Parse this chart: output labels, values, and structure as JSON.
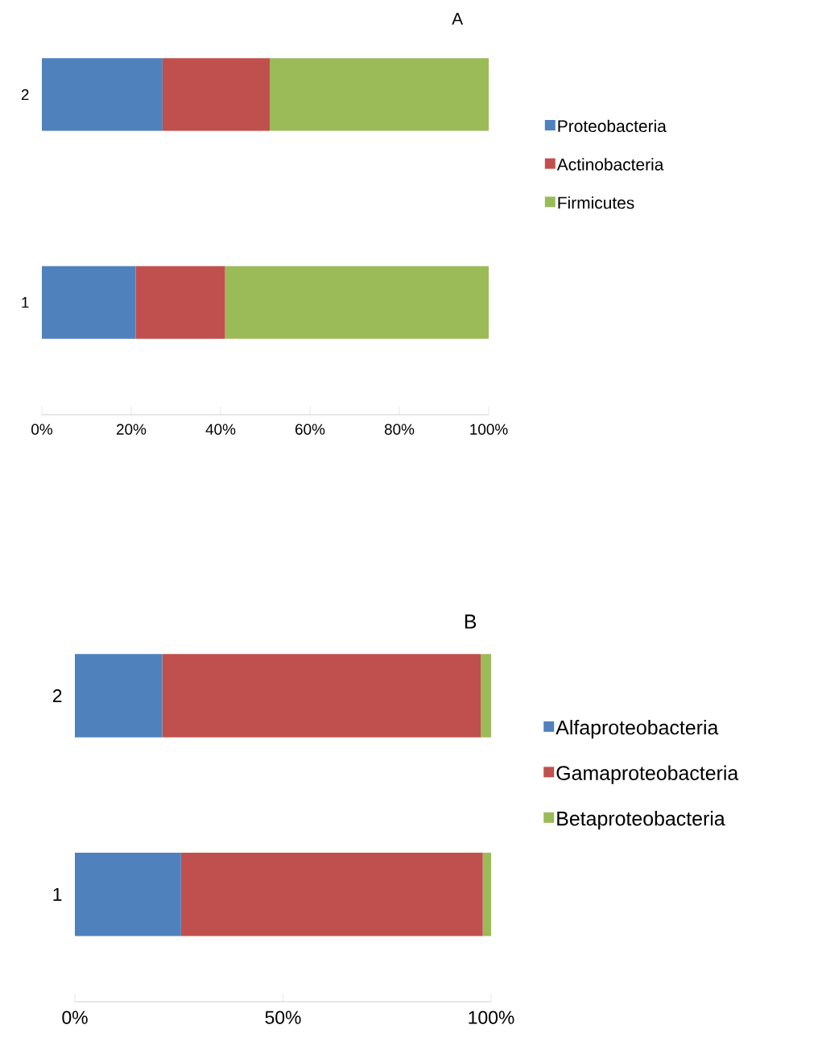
{
  "chart_data": [
    {
      "type": "bar",
      "title": "A",
      "orientation": "horizontal",
      "stacked": true,
      "categories": [
        "2",
        "1"
      ],
      "xlim": [
        0,
        100
      ],
      "xticks": [
        {
          "value": 0,
          "label": "0%"
        },
        {
          "value": 20,
          "label": "20%"
        },
        {
          "value": 40,
          "label": "40%"
        },
        {
          "value": 60,
          "label": "60%"
        },
        {
          "value": 80,
          "label": "80%"
        },
        {
          "value": 100,
          "label": "100%"
        }
      ],
      "legend": "right",
      "series": [
        {
          "name": "Proteobacteria",
          "color": "#4f81bd",
          "values": [
            27,
            21
          ]
        },
        {
          "name": "Actinobacteria",
          "color": "#c0504d",
          "values": [
            24,
            20
          ]
        },
        {
          "name": "Firmicutes",
          "color": "#9bbb59",
          "values": [
            49,
            59
          ]
        }
      ]
    },
    {
      "type": "bar",
      "title": "B",
      "orientation": "horizontal",
      "stacked": true,
      "categories": [
        "2",
        "1"
      ],
      "xlim": [
        0,
        100
      ],
      "xticks": [
        {
          "value": 0,
          "label": "0%"
        },
        {
          "value": 50,
          "label": "50%"
        },
        {
          "value": 100,
          "label": "100%"
        }
      ],
      "legend": "right",
      "series": [
        {
          "name": "Alfaproteobacteria",
          "color": "#4f81bd",
          "values": [
            21,
            25.5
          ]
        },
        {
          "name": "Gamaproteobacteria",
          "color": "#c0504d",
          "values": [
            76.5,
            72.5
          ]
        },
        {
          "name": "Betaproteobacteria",
          "color": "#9bbb59",
          "values": [
            2.5,
            2
          ]
        }
      ]
    }
  ]
}
